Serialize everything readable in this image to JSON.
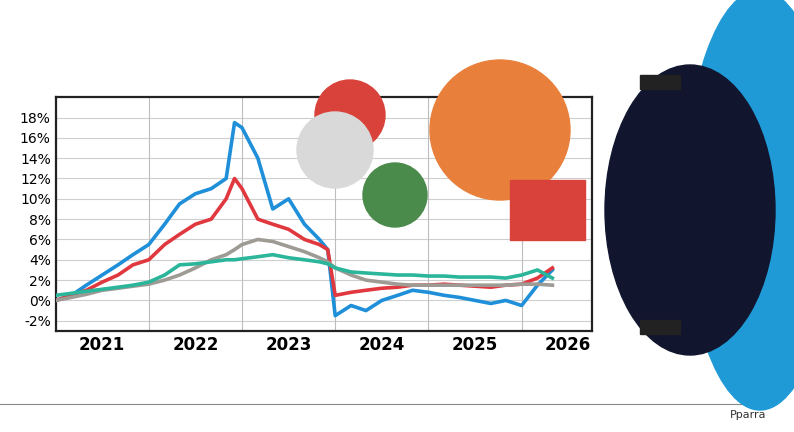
{
  "chart_data": {
    "type": "line",
    "x": [
      2021.0,
      2021.17,
      2021.33,
      2021.5,
      2021.67,
      2021.83,
      2022.0,
      2022.17,
      2022.33,
      2022.5,
      2022.67,
      2022.83,
      2022.92,
      2023.0,
      2023.17,
      2023.33,
      2023.5,
      2023.67,
      2023.83,
      2023.92,
      2024.0,
      2024.17,
      2024.33,
      2024.5,
      2024.67,
      2024.83,
      2025.0,
      2025.17,
      2025.33,
      2025.5,
      2025.67,
      2025.83,
      2026.0,
      2026.17,
      2026.33
    ],
    "series": [
      {
        "color": "#1e8fd8",
        "values": [
          0,
          0.5,
          1.5,
          2.5,
          3.5,
          4.5,
          5.5,
          7.5,
          9.5,
          10.5,
          11,
          12,
          17.5,
          17,
          14,
          9,
          10,
          7.5,
          6,
          5,
          -1.5,
          -0.5,
          -1,
          0,
          0.5,
          1,
          0.8,
          0.5,
          0.3,
          0,
          -0.3,
          0,
          -0.5,
          1.5,
          3
        ]
      },
      {
        "color": "#e0383e",
        "values": [
          0,
          0.5,
          1,
          1.8,
          2.5,
          3.5,
          4,
          5.5,
          6.5,
          7.5,
          8,
          10,
          12,
          11,
          8,
          7.5,
          7,
          6,
          5.5,
          5,
          0.5,
          0.8,
          1,
          1.2,
          1.3,
          1.5,
          1.5,
          1.6,
          1.5,
          1.4,
          1.3,
          1.5,
          1.6,
          2.2,
          3.2
        ]
      },
      {
        "color": "#9e9a94",
        "values": [
          0,
          0.3,
          0.6,
          1,
          1.2,
          1.4,
          1.6,
          2,
          2.5,
          3.2,
          4,
          4.5,
          5,
          5.5,
          6,
          5.8,
          5.3,
          4.8,
          4.2,
          3.8,
          3.2,
          2.5,
          2,
          1.8,
          1.6,
          1.5,
          1.5,
          1.5,
          1.5,
          1.5,
          1.5,
          1.5,
          1.6,
          1.6,
          1.5
        ]
      },
      {
        "color": "#2bb59a",
        "values": [
          0.5,
          0.7,
          0.9,
          1.1,
          1.3,
          1.5,
          1.8,
          2.5,
          3.5,
          3.6,
          3.8,
          4,
          4,
          4.1,
          4.3,
          4.5,
          4.2,
          4,
          3.8,
          3.6,
          3.2,
          2.8,
          2.7,
          2.6,
          2.5,
          2.5,
          2.4,
          2.4,
          2.3,
          2.3,
          2.3,
          2.2,
          2.5,
          3,
          2.2
        ]
      }
    ],
    "xlim": [
      2021.0,
      2026.75
    ],
    "xticks": [
      {
        "value": 2021.5,
        "label": "2021"
      },
      {
        "value": 2022.5,
        "label": "2022"
      },
      {
        "value": 2023.5,
        "label": "2023"
      },
      {
        "value": 2024.5,
        "label": "2024"
      },
      {
        "value": 2025.5,
        "label": "2025"
      },
      {
        "value": 2026.5,
        "label": "2026"
      }
    ],
    "ylim": [
      -3,
      20
    ],
    "yticks": [
      {
        "value": -2,
        "label": "-2%"
      },
      {
        "value": 0,
        "label": "0%"
      },
      {
        "value": 2,
        "label": "2%"
      },
      {
        "value": 4,
        "label": "4%"
      },
      {
        "value": 6,
        "label": "6%"
      },
      {
        "value": 8,
        "label": "8%"
      },
      {
        "value": 10,
        "label": "10%"
      },
      {
        "value": 12,
        "label": "12%"
      },
      {
        "value": 14,
        "label": "14%"
      },
      {
        "value": 16,
        "label": "16%"
      },
      {
        "value": 18,
        "label": "18%"
      }
    ],
    "grid": true,
    "credit": "Pparra"
  }
}
